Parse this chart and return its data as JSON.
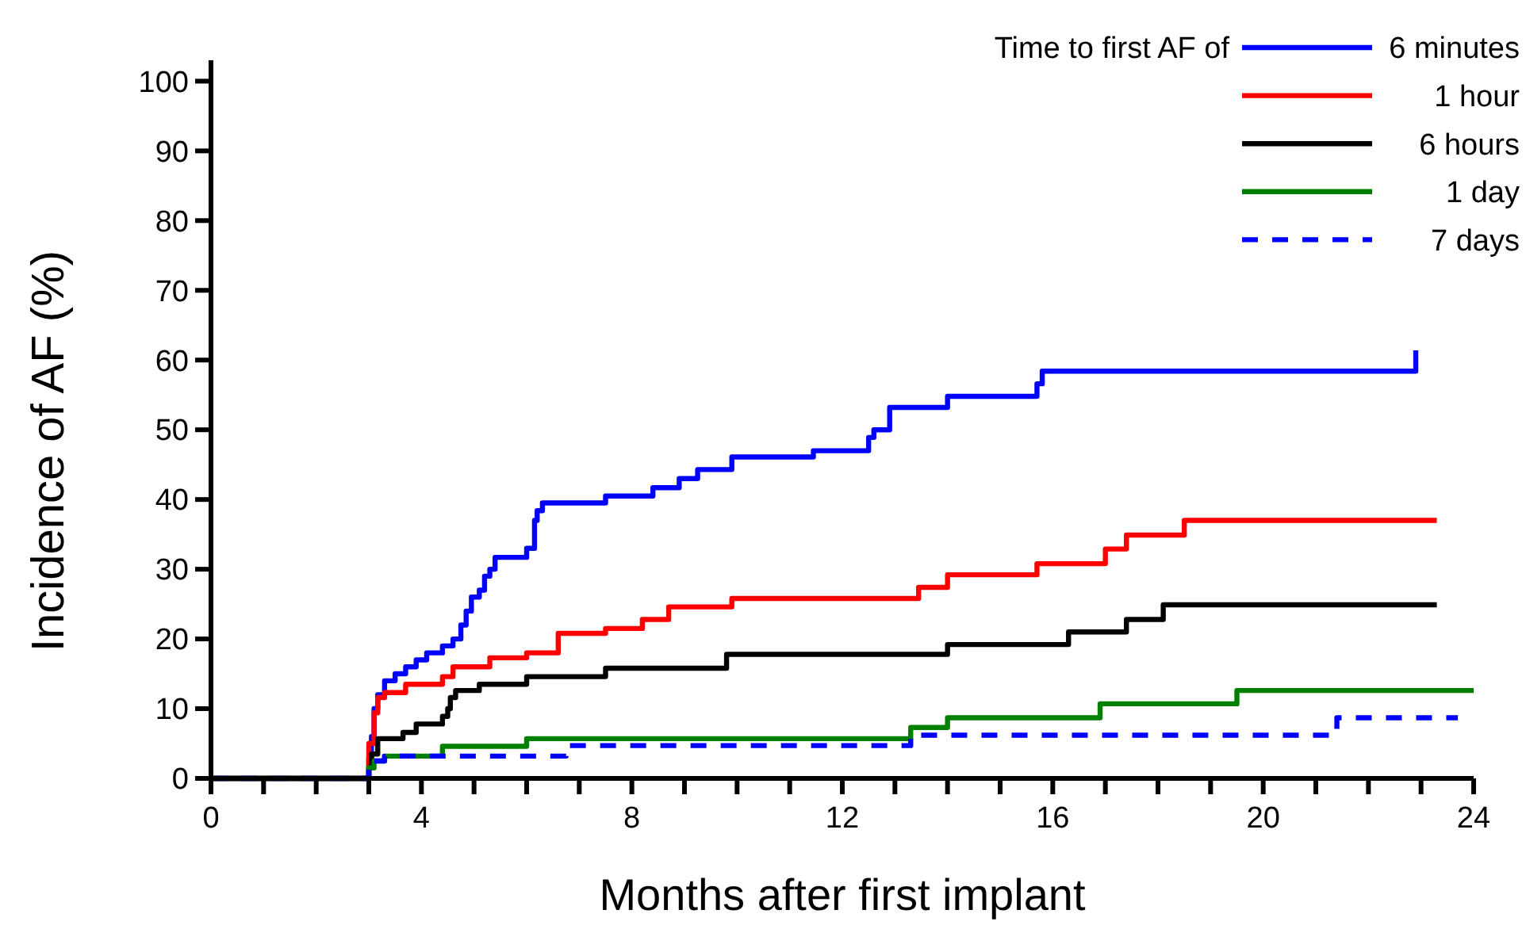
{
  "chart_data": {
    "type": "step",
    "xlabel": "Months after first implant",
    "ylabel": "Incidence of AF (%)",
    "legend_title": "Time to first AF of",
    "legend": "top right",
    "grid": false,
    "marker": "none",
    "xlim": [
      0,
      24
    ],
    "ylim": [
      0,
      103
    ],
    "xticks": [
      0,
      {
        "value": 1,
        "label": null
      },
      {
        "value": 2,
        "label": null
      },
      {
        "value": 3,
        "label": null
      },
      4,
      {
        "value": 5,
        "label": null
      },
      {
        "value": 6,
        "label": null
      },
      {
        "value": 7,
        "label": null
      },
      8,
      {
        "value": 9,
        "label": null
      },
      {
        "value": 10,
        "label": null
      },
      {
        "value": 11,
        "label": null
      },
      12,
      {
        "value": 13,
        "label": null
      },
      {
        "value": 14,
        "label": null
      },
      {
        "value": 15,
        "label": null
      },
      16,
      {
        "value": 17,
        "label": null
      },
      {
        "value": 18,
        "label": null
      },
      {
        "value": 19,
        "label": null
      },
      20,
      {
        "value": 21,
        "label": null
      },
      {
        "value": 22,
        "label": null
      },
      {
        "value": 23,
        "label": null
      },
      24
    ],
    "yticks": [
      0,
      10,
      20,
      30,
      40,
      50,
      60,
      70,
      80,
      90,
      100
    ],
    "series": [
      {
        "name": "6 minutes",
        "color": "#0000ff",
        "line_style": "solid",
        "x": [
          0,
          3.0,
          3.05,
          3.1,
          3.17,
          3.3,
          3.5,
          3.7,
          3.9,
          4.1,
          4.4,
          4.6,
          4.75,
          4.85,
          4.95,
          5.1,
          5.2,
          5.3,
          5.4,
          6.0,
          6.15,
          6.2,
          6.3,
          7.5,
          8.4,
          8.9,
          9.25,
          9.9,
          11.45,
          12.5,
          12.6,
          12.9,
          14.0,
          15.7,
          15.8,
          22.9
        ],
        "values": [
          0,
          3,
          6,
          10,
          12,
          14,
          15,
          16,
          17,
          18,
          19,
          20,
          22,
          24,
          26,
          27,
          29,
          30,
          31.7,
          33,
          37,
          38.4,
          39.5,
          40.5,
          41.7,
          43,
          44.3,
          46.1,
          47,
          48.9,
          50,
          53.2,
          54.8,
          56.6,
          58.4,
          61.4
        ]
      },
      {
        "name": "1 hour",
        "color": "#ff0000",
        "line_style": "solid",
        "x": [
          0,
          3.0,
          3.1,
          3.17,
          3.3,
          3.7,
          4.4,
          4.6,
          5.3,
          6.0,
          6.6,
          7.5,
          8.2,
          8.7,
          9.9,
          13.45,
          14.0,
          15.7,
          17.0,
          17.4,
          18.5,
          23.3
        ],
        "values": [
          0,
          5,
          9.4,
          11.6,
          12.3,
          13.5,
          14.6,
          16,
          17.3,
          18,
          20.8,
          21.5,
          22.8,
          24.6,
          25.8,
          27.4,
          29.2,
          30.8,
          32.9,
          34.9,
          37,
          37
        ]
      },
      {
        "name": "6 hours",
        "color": "#000000",
        "line_style": "solid",
        "x": [
          0,
          3.0,
          3.05,
          3.17,
          3.65,
          3.9,
          4.4,
          4.5,
          4.55,
          4.65,
          5.1,
          6.0,
          7.5,
          9.8,
          14.0,
          16.3,
          17.4,
          18.1,
          23.3
        ],
        "values": [
          0,
          1.5,
          3.5,
          5.7,
          6.6,
          7.8,
          8.9,
          10,
          11.6,
          12.6,
          13.5,
          14.6,
          15.8,
          17.8,
          19.2,
          21,
          22.8,
          24.9,
          24.9
        ]
      },
      {
        "name": "1 day",
        "color": "#008000",
        "line_style": "solid",
        "x": [
          0,
          3.0,
          3.1,
          3.3,
          4.4,
          6.0,
          13.3,
          14.0,
          16.9,
          19.5,
          24.0
        ],
        "values": [
          0,
          1.5,
          2.5,
          3.2,
          4.6,
          5.7,
          7.3,
          8.7,
          10.7,
          12.6,
          12.6
        ]
      },
      {
        "name": "7 days",
        "color": "#0000ff",
        "line_style": "dashed",
        "x": [
          0,
          3.0,
          3.1,
          3.3,
          6.75,
          13.3,
          21.4,
          23.7
        ],
        "values": [
          0,
          1.5,
          2.5,
          3.2,
          4.7,
          6.2,
          8.7,
          8.7
        ]
      }
    ]
  }
}
